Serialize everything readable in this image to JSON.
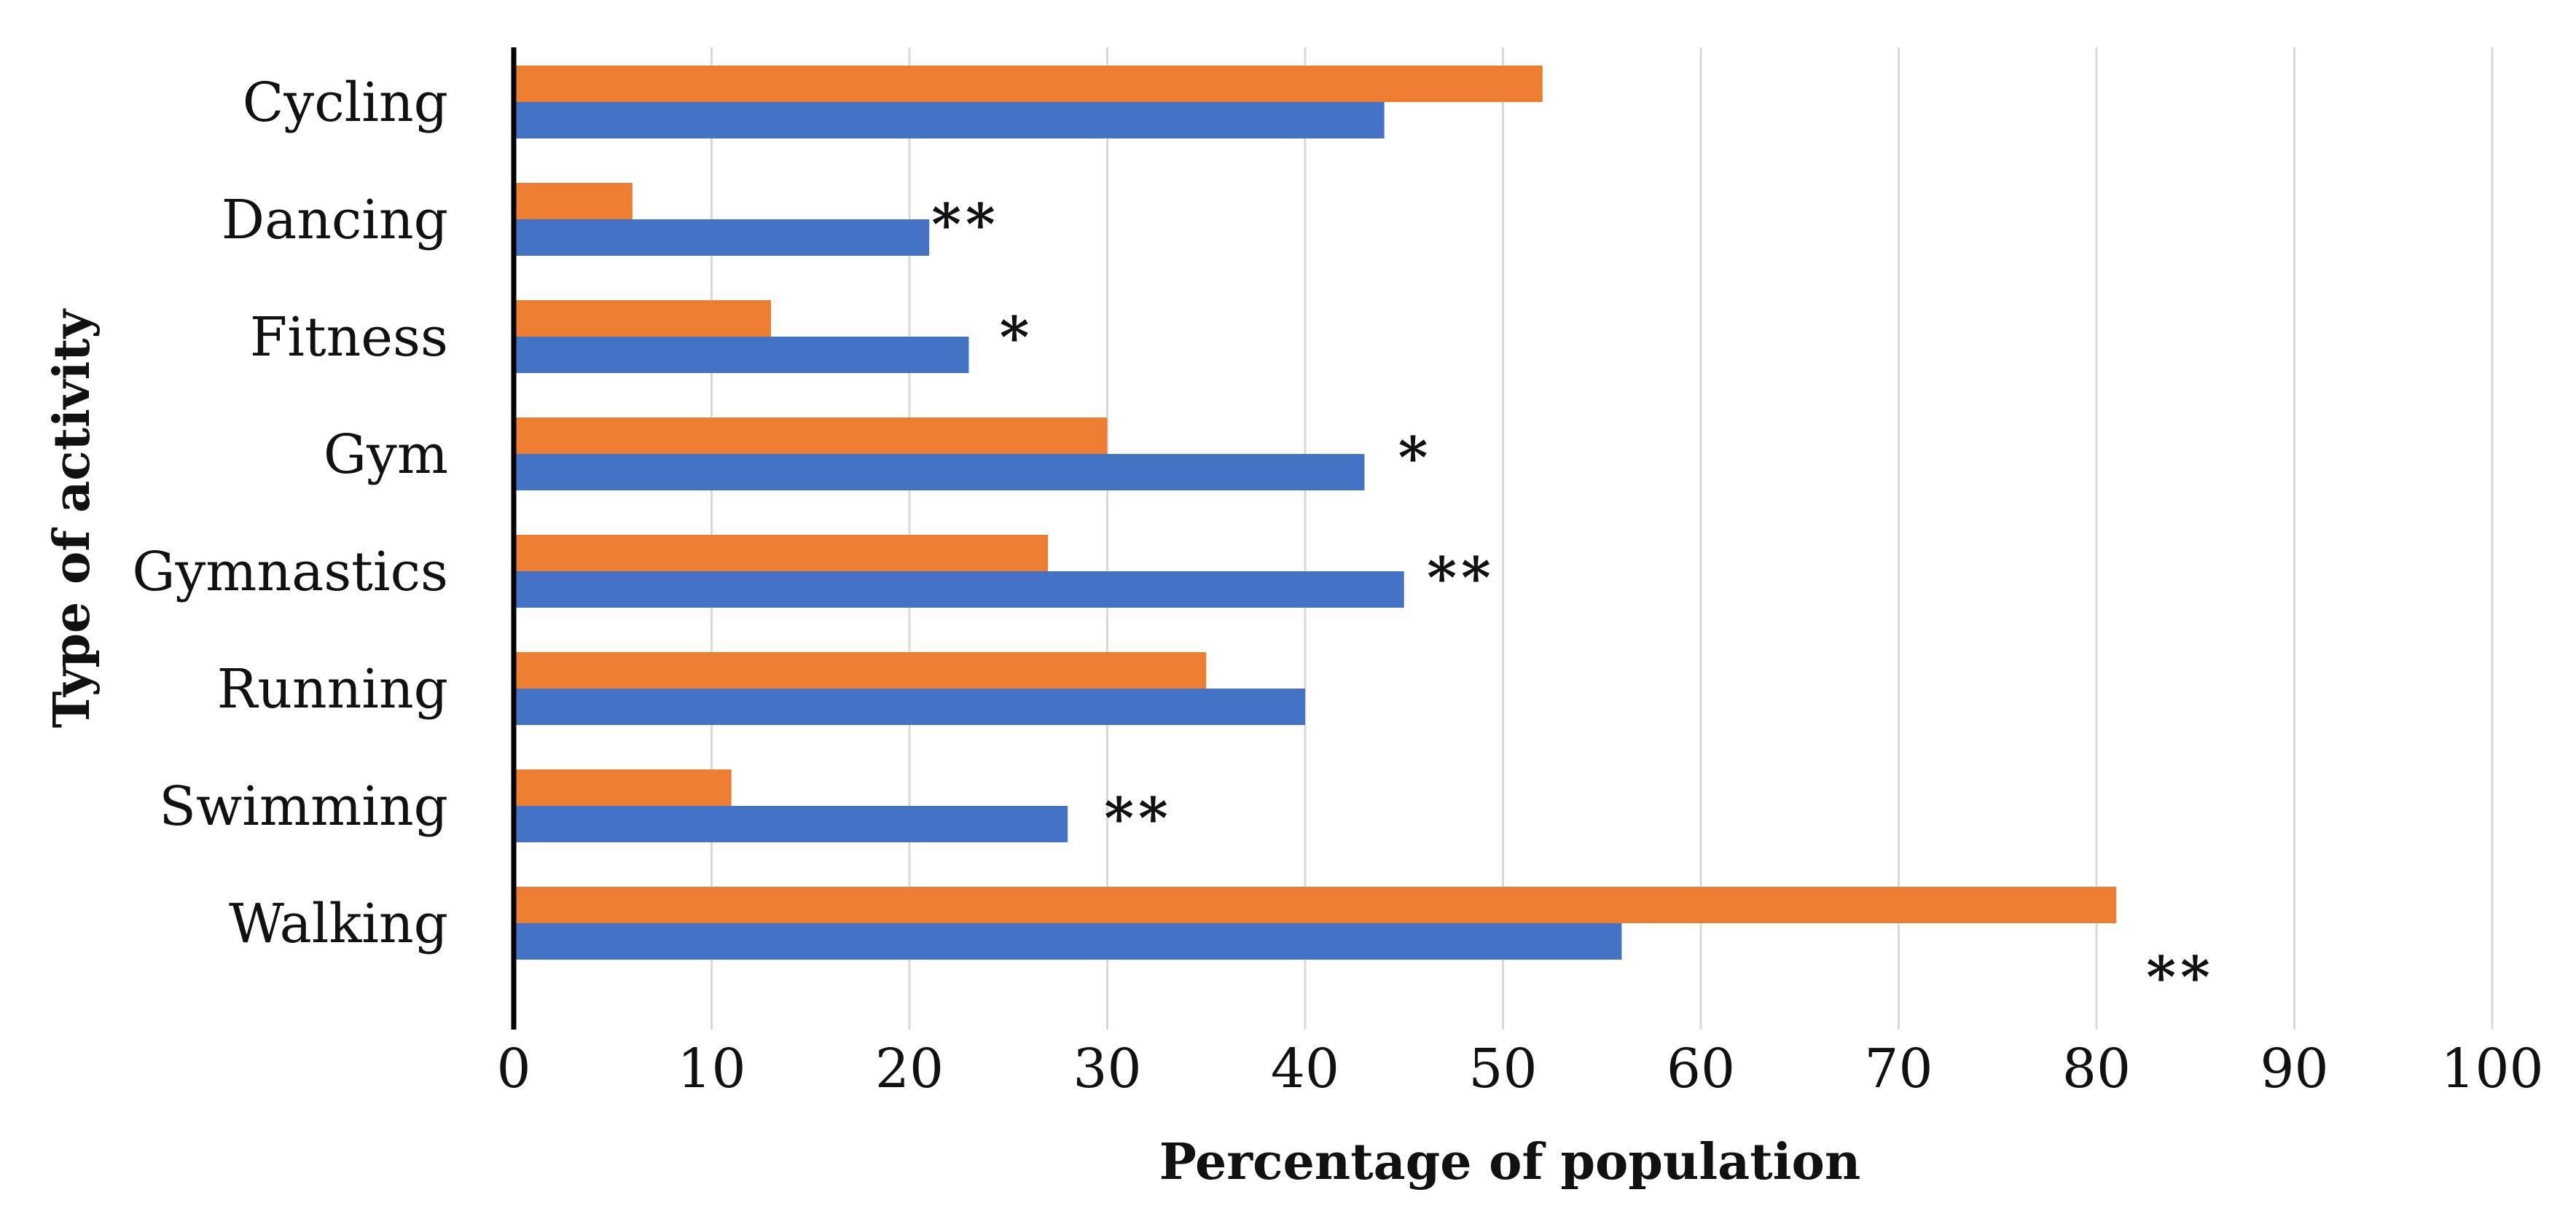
{
  "chart_data": {
    "type": "bar",
    "orientation": "horizontal",
    "title": "",
    "xlabel": "Percentage of population",
    "ylabel": "Type of activity",
    "xlim": [
      0,
      100
    ],
    "xticks": [
      0,
      10,
      20,
      30,
      40,
      50,
      60,
      70,
      80,
      90,
      100
    ],
    "grid": true,
    "legend": "none",
    "categories": [
      "Cycling",
      "Dancing",
      "Fitness",
      "Gym",
      "Gymnastics",
      "Running",
      "Swimming",
      "Walking"
    ],
    "series": [
      {
        "name": "orange-series",
        "color": "#ed7d31",
        "values": [
          52,
          6,
          13,
          30,
          27,
          35,
          11,
          81
        ]
      },
      {
        "name": "blue-series",
        "color": "#4472c4",
        "values": [
          44,
          21,
          23,
          43,
          45,
          40,
          28,
          56
        ]
      }
    ],
    "significance": [
      "",
      "**",
      "*",
      "*",
      "**",
      "",
      "**",
      "**"
    ]
  }
}
